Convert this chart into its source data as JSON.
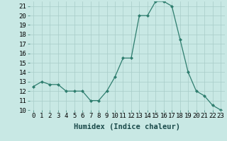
{
  "x": [
    0,
    1,
    2,
    3,
    4,
    5,
    6,
    7,
    8,
    9,
    10,
    11,
    12,
    13,
    14,
    15,
    16,
    17,
    18,
    19,
    20,
    21,
    22,
    23
  ],
  "y": [
    12.5,
    13,
    12.7,
    12.7,
    12,
    12,
    12,
    11,
    11,
    12,
    13.5,
    15.5,
    15.5,
    20,
    20,
    21.5,
    21.5,
    21,
    17.5,
    14,
    12,
    11.5,
    10.5,
    10
  ],
  "line_color": "#2e7d6e",
  "marker": "D",
  "marker_size": 2,
  "bg_color": "#c8e8e4",
  "grid_color": "#a8ccc8",
  "xlabel": "Humidex (Indice chaleur)",
  "xlim": [
    -0.5,
    23.5
  ],
  "ylim": [
    10,
    21.5
  ],
  "yticks": [
    10,
    11,
    12,
    13,
    14,
    15,
    16,
    17,
    18,
    19,
    20,
    21
  ],
  "xticks": [
    0,
    1,
    2,
    3,
    4,
    5,
    6,
    7,
    8,
    9,
    10,
    11,
    12,
    13,
    14,
    15,
    16,
    17,
    18,
    19,
    20,
    21,
    22,
    23
  ],
  "tick_label_fontsize": 6.5,
  "xlabel_fontsize": 7.5
}
